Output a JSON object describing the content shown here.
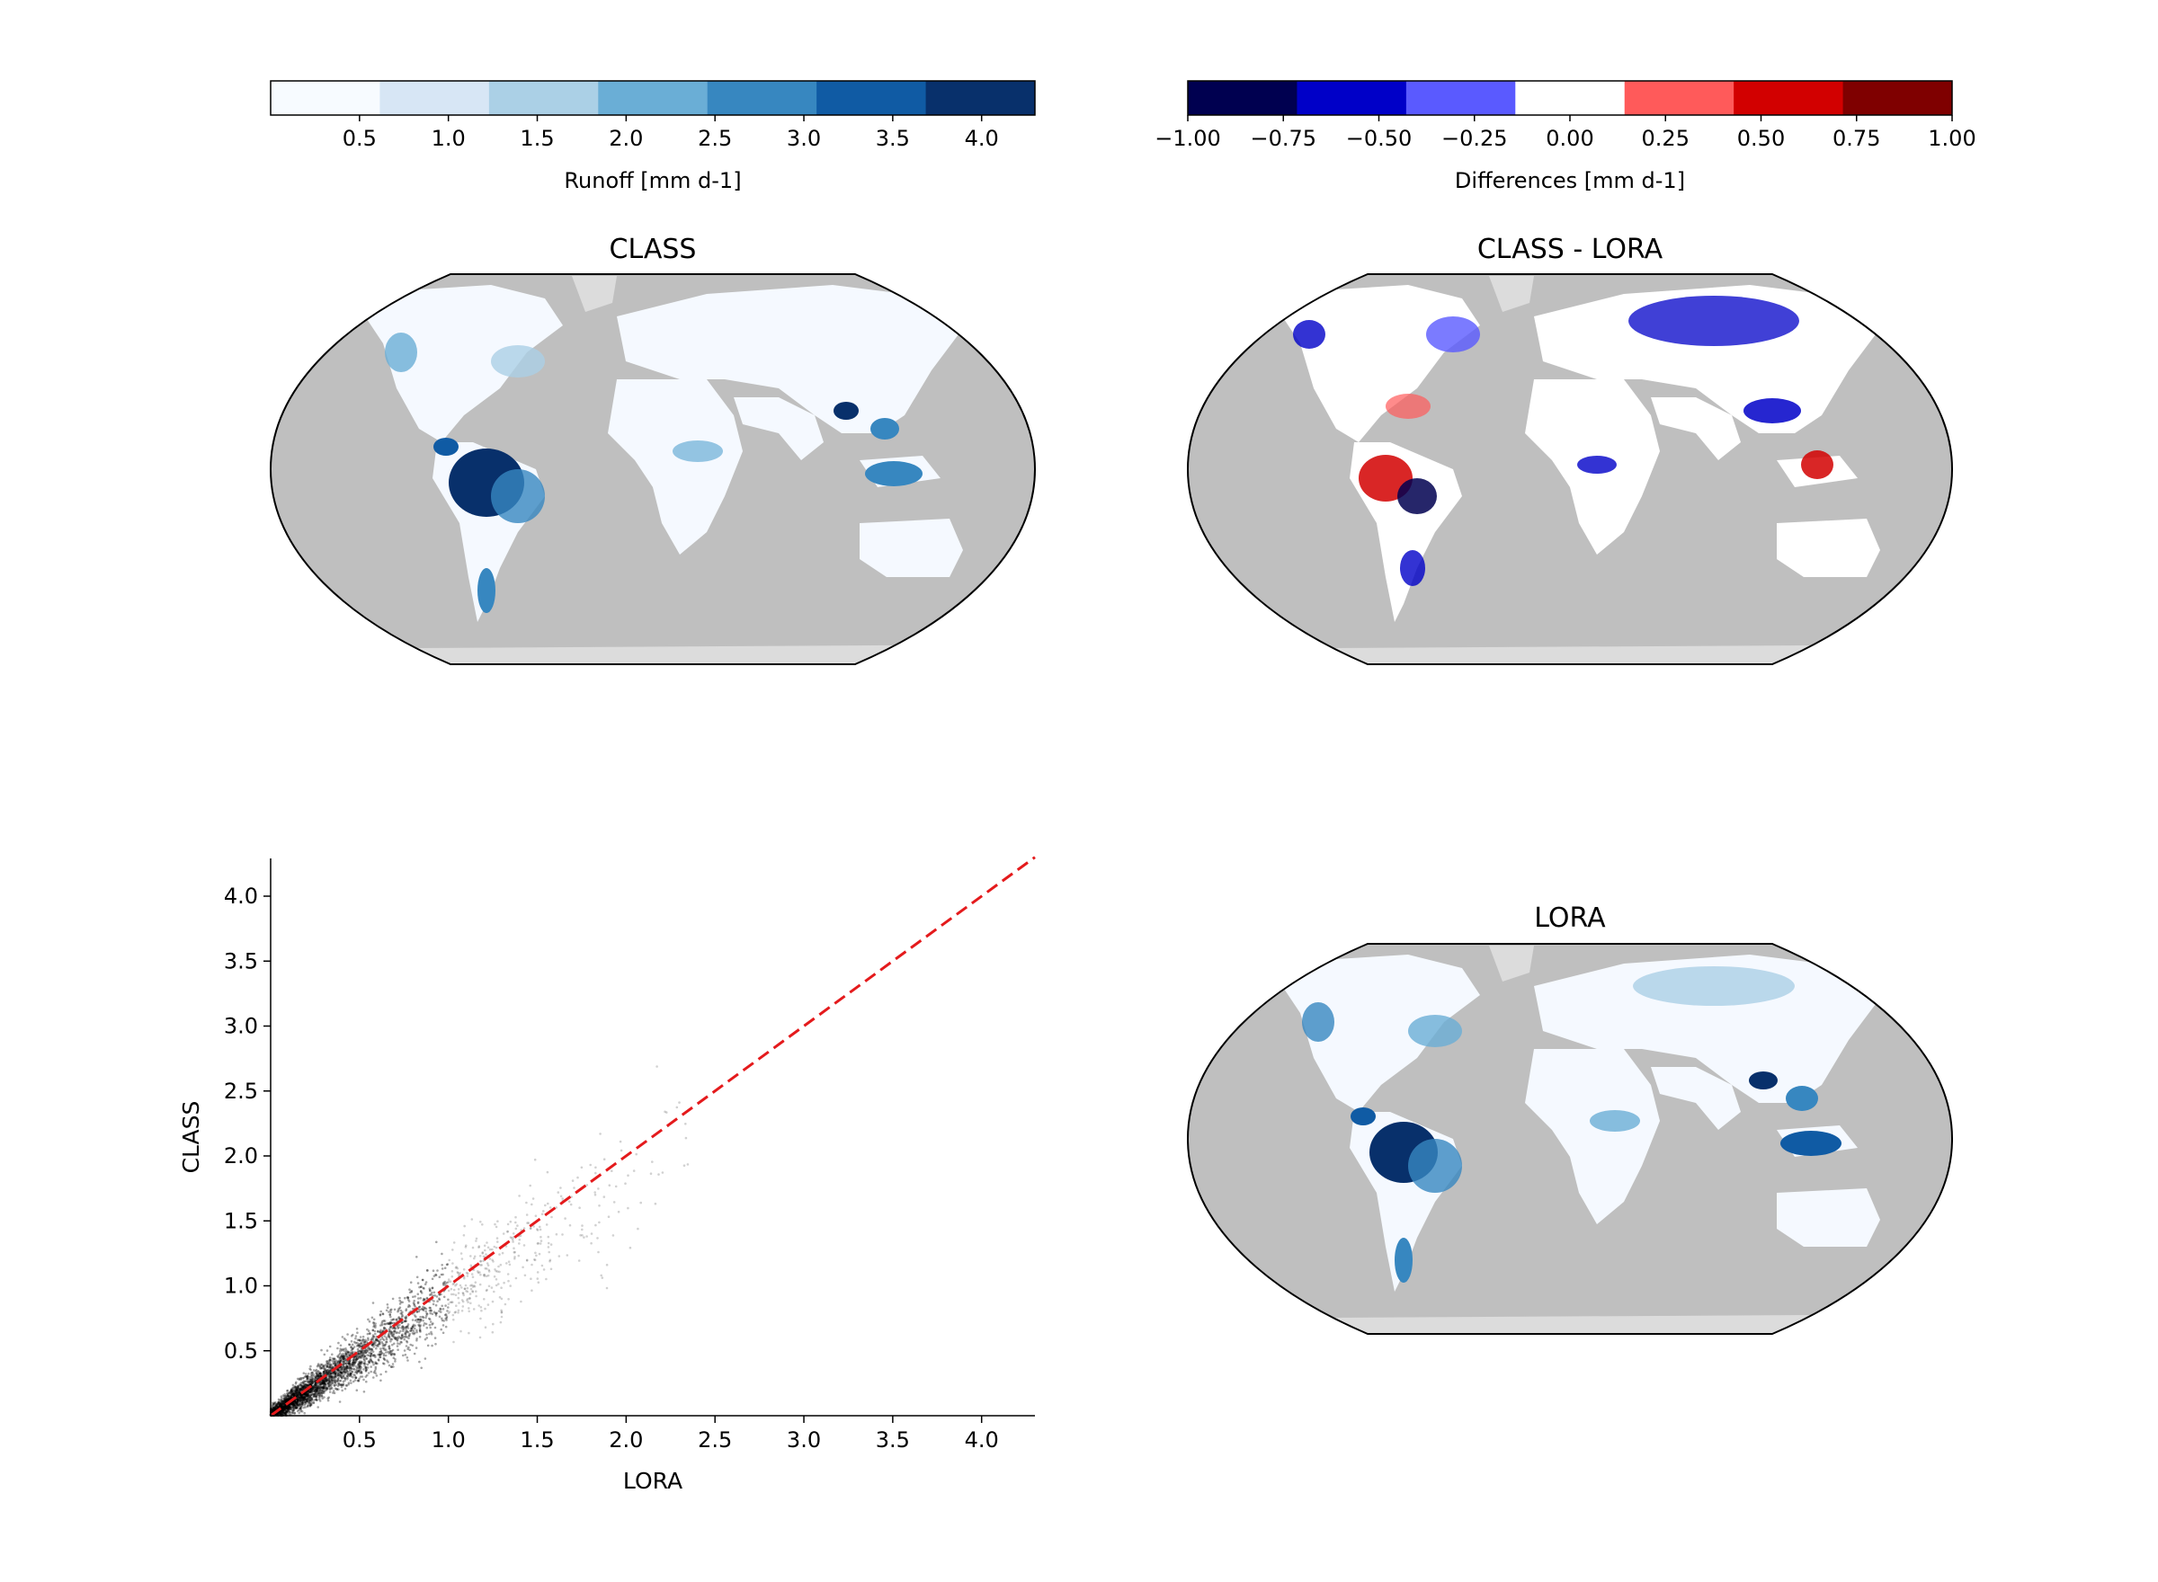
{
  "colorbar_runoff": {
    "label": "Runoff [mm d-1]",
    "colors": [
      "#f7fbff",
      "#d7e6f5",
      "#abd0e6",
      "#6aaed6",
      "#3787c0",
      "#105ba4",
      "#08306b"
    ],
    "ticks": [
      "0.5",
      "1.0",
      "1.5",
      "2.0",
      "2.5",
      "3.0",
      "3.5",
      "4.0"
    ]
  },
  "colorbar_diff": {
    "label": "Differences [mm d-1]",
    "colors": [
      "#000050",
      "#0000c8",
      "#5a5aff",
      "#ffffff",
      "#ff5a5a",
      "#d20000",
      "#7f0000"
    ],
    "ticks": [
      "−1.00",
      "−0.75",
      "−0.50",
      "−0.25",
      "0.00",
      "0.25",
      "0.50",
      "0.75",
      "1.00"
    ]
  },
  "maps": {
    "class": {
      "title": "CLASS"
    },
    "diff": {
      "title": "CLASS - LORA"
    },
    "lora": {
      "title": "LORA"
    }
  },
  "map_colors": {
    "ocean": "#bfbfbf",
    "ice": "#dcdcdc",
    "land_low": "#f5f9ff"
  },
  "chart_data": {
    "type": "scatter",
    "xlabel": "LORA",
    "ylabel": "CLASS",
    "xlim": [
      0,
      4.3
    ],
    "ylim": [
      0,
      4.3
    ],
    "xticks": [
      "0.5",
      "1.0",
      "1.5",
      "2.0",
      "2.5",
      "3.0",
      "3.5",
      "4.0"
    ],
    "yticks": [
      "0.5",
      "1.0",
      "1.5",
      "2.0",
      "2.5",
      "3.0",
      "3.5",
      "4.0"
    ],
    "reference_line": {
      "x": [
        0,
        4.3
      ],
      "y": [
        0,
        4.3
      ],
      "style": "dashed",
      "color": "#e41a1c"
    },
    "point_color": "#000000"
  }
}
